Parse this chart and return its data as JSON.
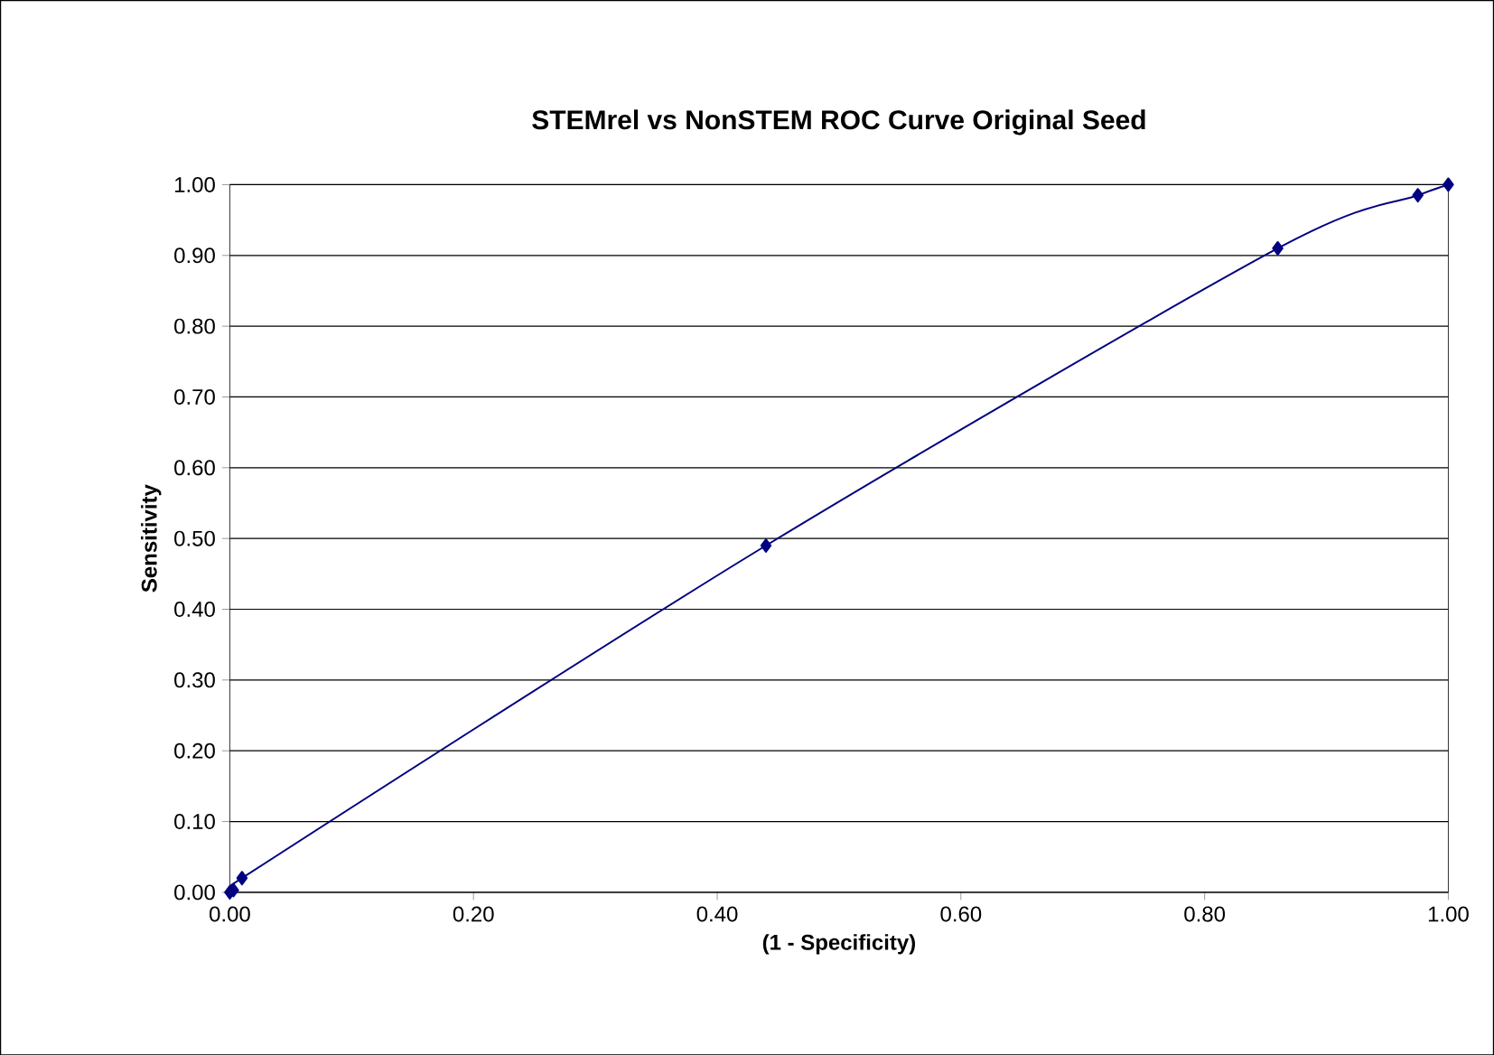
{
  "chart_data": {
    "type": "line",
    "title": "STEMrel vs NonSTEM ROC Curve Original Seed",
    "xlabel": "(1 - Specificity)",
    "ylabel": "Sensitivity",
    "series": [
      {
        "color": "#000080",
        "x": [
          0,
          0.003,
          0.01,
          0.44,
          0.86,
          0.975,
          1
        ],
        "values": [
          0,
          0.003,
          0.02,
          0.49,
          0.91,
          0.985,
          1
        ]
      }
    ],
    "marker": "diamond",
    "grid": "y",
    "xlim": [
      0,
      1
    ],
    "ylim": [
      0,
      1
    ],
    "xticks": [
      {
        "value": 0,
        "label": "0.00"
      },
      {
        "value": 0.2,
        "label": "0.20"
      },
      {
        "value": 0.4,
        "label": "0.40"
      },
      {
        "value": 0.6,
        "label": "0.60"
      },
      {
        "value": 0.8,
        "label": "0.80"
      },
      {
        "value": 1,
        "label": "1.00"
      }
    ],
    "yticks": [
      {
        "value": 0,
        "label": "0.00"
      },
      {
        "value": 0.1,
        "label": "0.10"
      },
      {
        "value": 0.2,
        "label": "0.20"
      },
      {
        "value": 0.3,
        "label": "0.30"
      },
      {
        "value": 0.4,
        "label": "0.40"
      },
      {
        "value": 0.5,
        "label": "0.50"
      },
      {
        "value": 0.6,
        "label": "0.60"
      },
      {
        "value": 0.7,
        "label": "0.70"
      },
      {
        "value": 0.8,
        "label": "0.80"
      },
      {
        "value": 0.9,
        "label": "0.90"
      },
      {
        "value": 1,
        "label": "1.00"
      }
    ]
  }
}
